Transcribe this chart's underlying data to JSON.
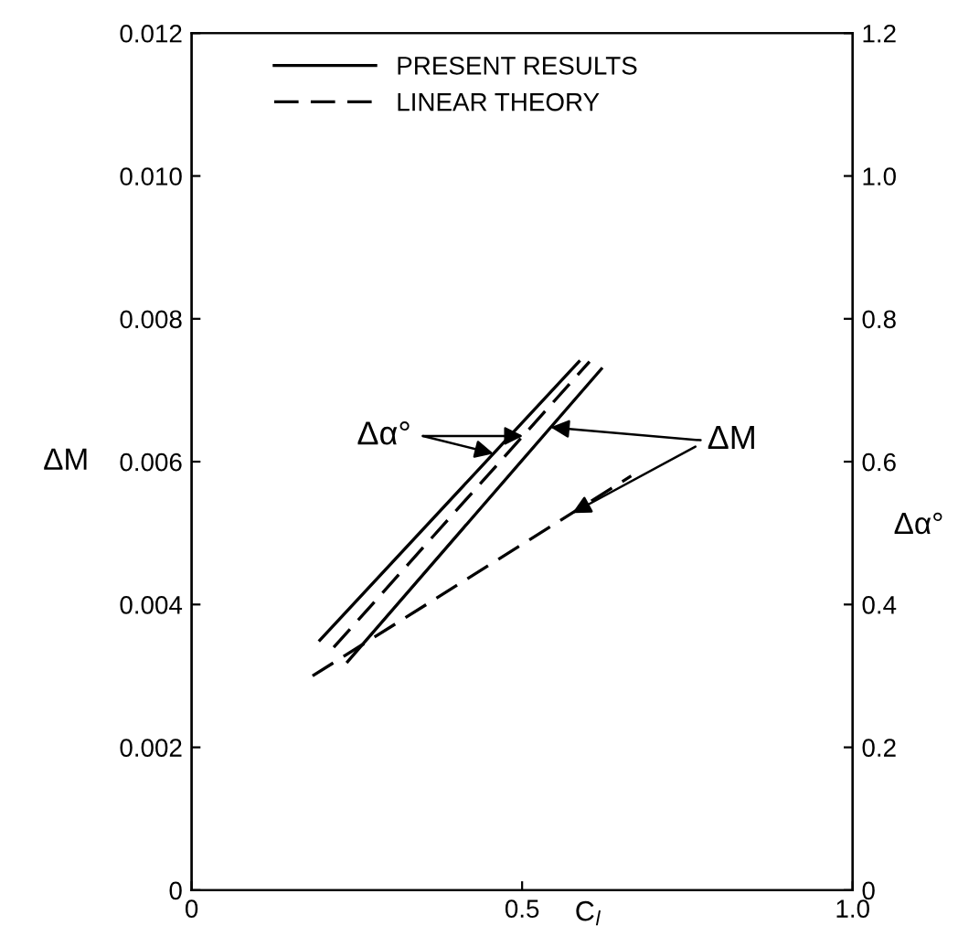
{
  "chart_data": {
    "type": "line",
    "xlabel": "C$_{l}$",
    "ylabel": "ΔM",
    "y2label": "Δα°",
    "xlim": [
      0,
      1.0
    ],
    "xticks": [
      0,
      0.5,
      {
        "value": 1.0,
        "label": "1.0"
      }
    ],
    "ylim": [
      0,
      0.012
    ],
    "yticks": [
      0,
      0.002,
      0.004,
      0.006,
      0.008,
      {
        "value": 0.01,
        "label": "0.010"
      },
      0.012
    ],
    "y2lim": [
      0,
      1.2
    ],
    "y2ticks": [
      0,
      0.2,
      0.4,
      0.6,
      0.8,
      {
        "value": 1.0,
        "label": "1.0"
      },
      1.2
    ],
    "series": [
      {
        "name": "PRESENT RESULTS",
        "color": "#000000",
        "line_style": "solid",
        "x": [
          0.236,
          0.62
        ],
        "values": [
          0.0032,
          0.0073
        ]
      },
      {
        "name": "LINEAR THEORY",
        "color": "#000000",
        "line_style": "dashed",
        "x": [
          0.183,
          0.665
        ],
        "values": [
          0.003,
          0.0058
        ]
      },
      {
        "color": "#000000",
        "line_style": "solid",
        "axis": "y2",
        "x": [
          0.194,
          0.586
        ],
        "values": [
          0.35,
          0.74
        ]
      },
      {
        "color": "#000000",
        "line_style": "dashed",
        "axis": "y2",
        "x": [
          0.215,
          0.602
        ],
        "values": [
          0.34,
          0.74
        ]
      }
    ],
    "annotations": [
      "Δα°",
      {
        "text": "ΔM",
        "x": 0.576,
        "y": 0.00528
      }
    ],
    "legend": "top",
    "grid": false,
    "marker": "none"
  }
}
